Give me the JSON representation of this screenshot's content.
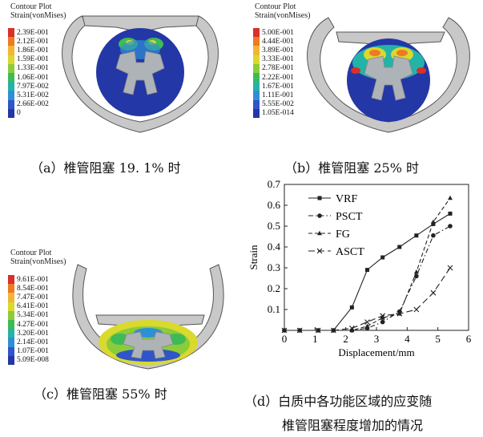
{
  "panels": [
    {
      "title_line1": "Contour Plot",
      "title_line2": "Strain(vonMises)",
      "legend": [
        "2.39E-001",
        "2.12E-001",
        "1.86E-001",
        "1.59E-001",
        "1.33E-001",
        "1.06E-001",
        "7.97E-002",
        "5.31E-002",
        "2.66E-002",
        "0"
      ],
      "caption": "（a）椎管阻塞 19. 1% 时"
    },
    {
      "title_line1": "Contour Plot",
      "title_line2": "Strain(vonMises)",
      "legend": [
        "5.00E-001",
        "4.44E-001",
        "3.89E-001",
        "3.33E-001",
        "2.78E-001",
        "2.22E-001",
        "1.67E-001",
        "1.11E-001",
        "5.55E-002",
        "1.05E-014"
      ],
      "caption": "（b）椎管阻塞 25% 时"
    },
    {
      "title_line1": "Contour Plot",
      "title_line2": "Strain(vonMises)",
      "legend": [
        "9.61E-001",
        "8.54E-001",
        "7.47E-001",
        "6.41E-001",
        "5.34E-001",
        "4.27E-001",
        "3.20E-001",
        "2.14E-001",
        "1.07E-001",
        "5.09E-008"
      ],
      "caption": "（c）椎管阻塞 55% 时"
    }
  ],
  "legend_colors": [
    "#d9302a",
    "#ee7a22",
    "#f2b634",
    "#d9d92e",
    "#8ccb3a",
    "#3dbb55",
    "#23b3a8",
    "#2f8fd6",
    "#2f55c8",
    "#2437a6"
  ],
  "caption_d_line1": "（d）白质中各功能区域的应变随",
  "caption_d_line2": "椎管阻塞程度增加的情况",
  "chart_data": {
    "type": "line",
    "xlabel": "Displacement/mm",
    "ylabel": "Strain",
    "xlim": [
      0,
      6
    ],
    "ylim": [
      0,
      0.7
    ],
    "xticks": [
      "0",
      "1",
      "2",
      "3",
      "4",
      "5",
      "6"
    ],
    "yticks": [
      "0.1",
      "0.2",
      "0.3",
      "0.4",
      "0.5",
      "0.6",
      "0.7"
    ],
    "legend_position": "top-left",
    "series": [
      {
        "name": "VRF",
        "marker": "square",
        "dash": "solid",
        "x": [
          0,
          0.5,
          1.1,
          1.6,
          2.2,
          2.7,
          3.2,
          3.75,
          4.3,
          4.85,
          5.4
        ],
        "y": [
          0,
          0,
          0,
          0,
          0.11,
          0.29,
          0.35,
          0.4,
          0.455,
          0.51,
          0.56
        ]
      },
      {
        "name": "PSCT",
        "marker": "circle",
        "dash": "dashdot",
        "x": [
          0,
          0.5,
          1.1,
          1.6,
          2.2,
          2.7,
          3.2,
          3.75,
          4.3,
          4.85,
          5.4
        ],
        "y": [
          0,
          0,
          0,
          0,
          0,
          0.01,
          0.04,
          0.09,
          0.26,
          0.455,
          0.5
        ]
      },
      {
        "name": "FG",
        "marker": "triangle",
        "dash": "dashed",
        "x": [
          0,
          0.5,
          1.1,
          1.6,
          2.2,
          2.7,
          3.2,
          3.75,
          4.3,
          4.85,
          5.4
        ],
        "y": [
          0,
          0,
          0,
          0,
          0,
          0.02,
          0.06,
          0.08,
          0.28,
          0.52,
          0.635
        ]
      },
      {
        "name": "ASCT",
        "marker": "x",
        "dash": "longdash",
        "x": [
          0,
          0.5,
          1.1,
          1.6,
          2.2,
          2.7,
          3.2,
          3.75,
          4.3,
          4.85,
          5.4
        ],
        "y": [
          0,
          0,
          0,
          0,
          0.01,
          0.04,
          0.07,
          0.08,
          0.1,
          0.18,
          0.3
        ]
      }
    ]
  }
}
